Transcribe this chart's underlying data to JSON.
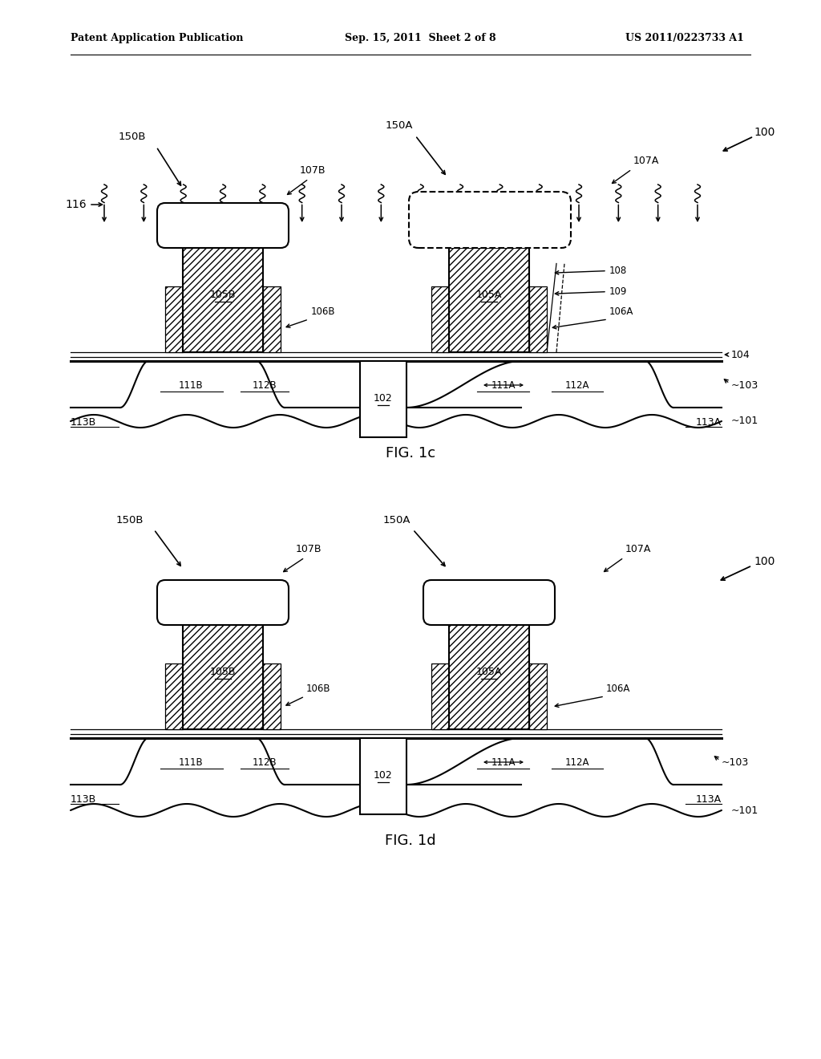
{
  "bg_color": "#ffffff",
  "line_color": "#000000",
  "header_left": "Patent Application Publication",
  "header_mid": "Sep. 15, 2011  Sheet 2 of 8",
  "header_right": "US 2011/0223733 A1",
  "fig1c_label": "FIG. 1c",
  "fig1d_label": "FIG. 1d",
  "lw": 1.5,
  "lw_thin": 0.9,
  "lw_thick": 2.2
}
